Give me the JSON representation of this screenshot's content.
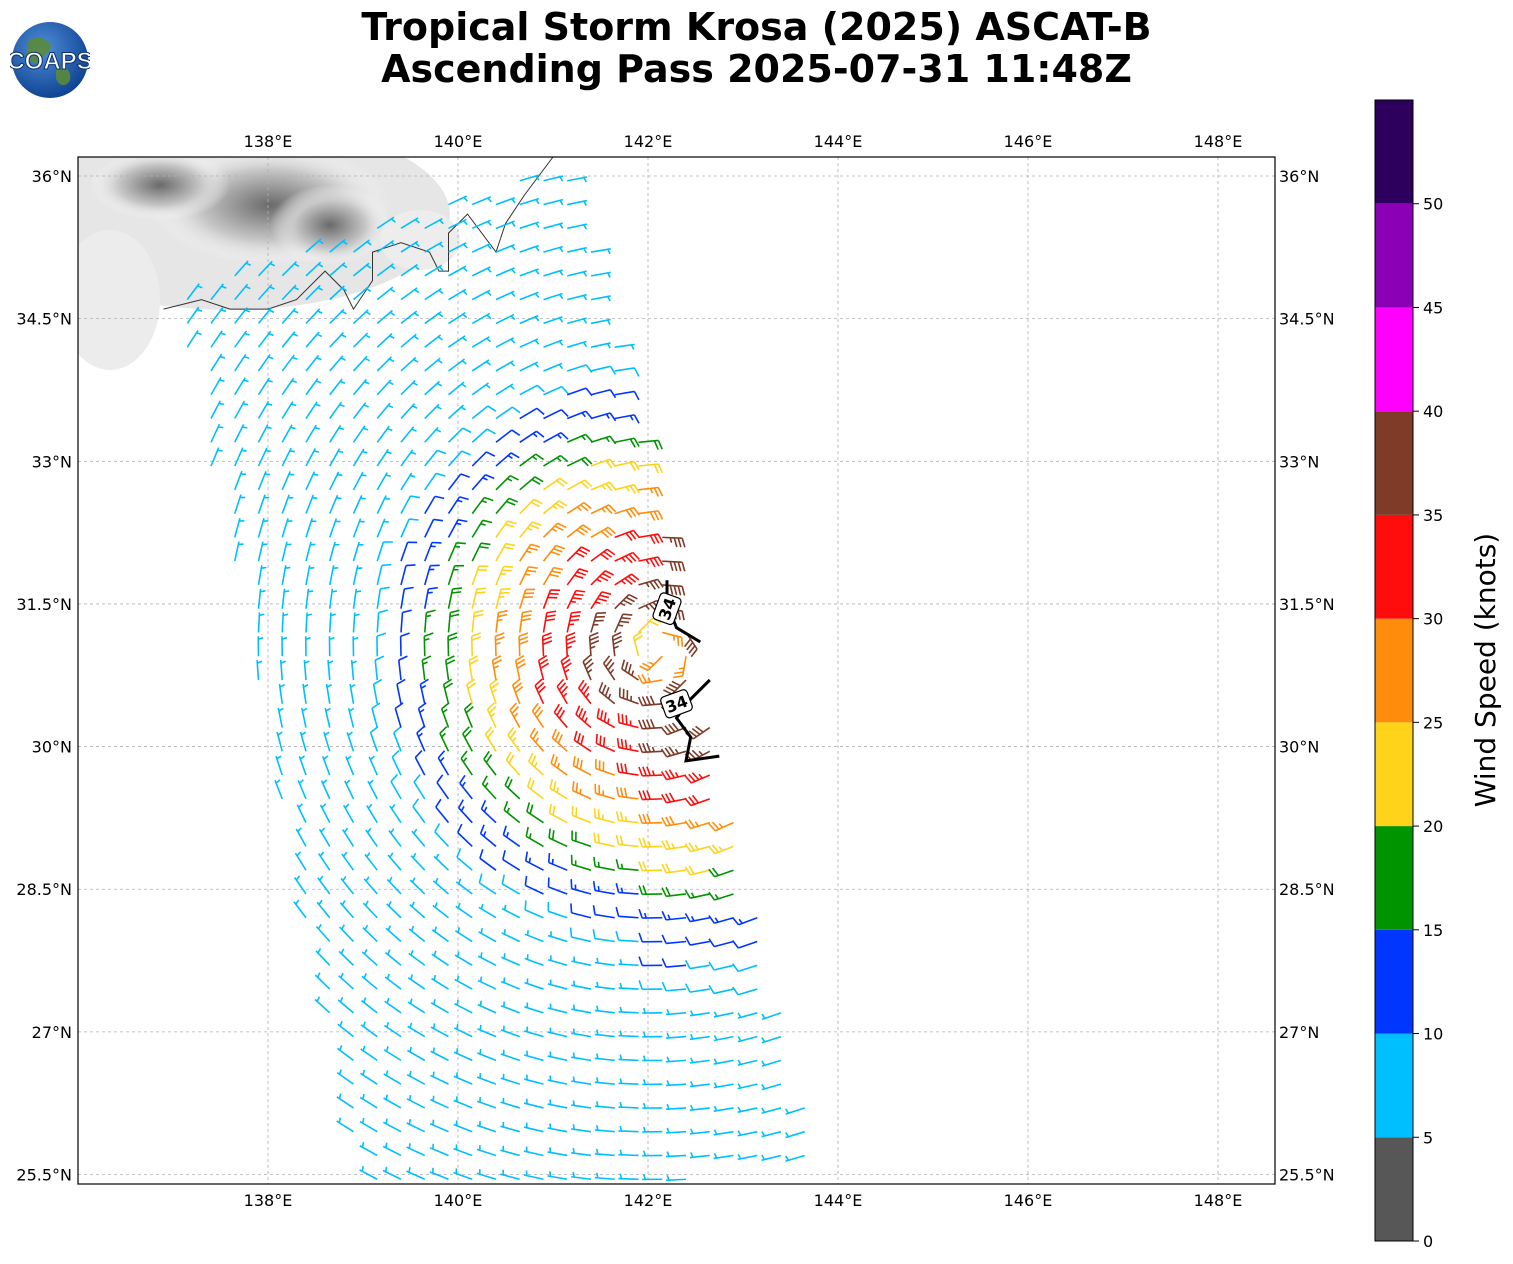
{
  "title": {
    "line1": "Tropical Storm Krosa (2025) ASCAT-B",
    "line2": "Ascending Pass 2025-07-31 11:48Z"
  },
  "logo": {
    "text": "COAPS"
  },
  "map": {
    "lon_range": [
      136,
      148.6
    ],
    "lat_range": [
      25.4,
      36.2
    ],
    "lon_ticks": [
      {
        "value": 138,
        "label": "138°E"
      },
      {
        "value": 140,
        "label": "140°E"
      },
      {
        "value": 142,
        "label": "142°E"
      },
      {
        "value": 144,
        "label": "144°E"
      },
      {
        "value": 146,
        "label": "146°E"
      },
      {
        "value": 148,
        "label": "148°E"
      }
    ],
    "lat_ticks": [
      {
        "value": 36,
        "label": "36°N"
      },
      {
        "value": 34.5,
        "label": "34.5°N"
      },
      {
        "value": 33,
        "label": "33°N"
      },
      {
        "value": 31.5,
        "label": "31.5°N"
      },
      {
        "value": 30,
        "label": "30°N"
      },
      {
        "value": 28.5,
        "label": "28.5°N"
      },
      {
        "value": 27,
        "label": "27°N"
      },
      {
        "value": 25.5,
        "label": "25.5°N"
      }
    ],
    "grid": true,
    "storm_center": {
      "lon": 142.1,
      "lat": 31.0
    },
    "contour_34kt": {
      "label": "34",
      "north_segment": [
        [
          142.2,
          31.75
        ],
        [
          142.2,
          31.5
        ],
        [
          142.3,
          31.25
        ],
        [
          142.55,
          31.1
        ]
      ],
      "south_segment": [
        [
          142.65,
          30.7
        ],
        [
          142.45,
          30.5
        ],
        [
          142.3,
          30.3
        ],
        [
          142.45,
          30.1
        ],
        [
          142.4,
          29.85
        ],
        [
          142.75,
          29.9
        ]
      ]
    },
    "coast": [
      [
        [
          136.9,
          34.6
        ],
        [
          137.3,
          34.7
        ],
        [
          137.6,
          34.6
        ],
        [
          138.0,
          34.6
        ],
        [
          138.3,
          34.7
        ],
        [
          138.6,
          35.0
        ],
        [
          138.8,
          34.8
        ],
        [
          138.9,
          34.6
        ],
        [
          139.1,
          34.9
        ],
        [
          139.1,
          35.2
        ],
        [
          139.4,
          35.3
        ],
        [
          139.7,
          35.2
        ],
        [
          139.8,
          35.0
        ],
        [
          139.9,
          35.0
        ],
        [
          139.9,
          35.4
        ],
        [
          140.1,
          35.6
        ],
        [
          140.4,
          35.2
        ],
        [
          140.5,
          35.5
        ],
        [
          140.7,
          35.8
        ],
        [
          141.0,
          36.2
        ]
      ]
    ],
    "swath": {
      "corners": [
        [
          137.0,
          34.8
        ],
        [
          141.2,
          36.2
        ],
        [
          143.85,
          25.5
        ],
        [
          139.0,
          25.3
        ]
      ],
      "speed_model": {
        "center_lon": 142.1,
        "center_lat": 31.0,
        "peak_knots": 36,
        "decay_deg": 1.6
      }
    },
    "barb_convention": {
      "half_barb_knots": 5,
      "full_barb_knots": 10
    }
  },
  "colorbar": {
    "label": "Wind Speed (knots)",
    "range": [
      0,
      55
    ],
    "bins": [
      {
        "from": 0,
        "to": 5,
        "color": "#575757"
      },
      {
        "from": 5,
        "to": 10,
        "color": "#00bfff"
      },
      {
        "from": 10,
        "to": 15,
        "color": "#0036ff"
      },
      {
        "from": 15,
        "to": 20,
        "color": "#009400"
      },
      {
        "from": 20,
        "to": 25,
        "color": "#ffd31a"
      },
      {
        "from": 25,
        "to": 30,
        "color": "#ff8d0b"
      },
      {
        "from": 30,
        "to": 35,
        "color": "#ff0d0d"
      },
      {
        "from": 35,
        "to": 40,
        "color": "#7f3b27"
      },
      {
        "from": 40,
        "to": 45,
        "color": "#ff00ff"
      },
      {
        "from": 45,
        "to": 50,
        "color": "#8b00b6"
      },
      {
        "from": 50,
        "to": 55,
        "color": "#2c005c"
      }
    ],
    "ticks": [
      "0",
      "5",
      "10",
      "15",
      "20",
      "25",
      "30",
      "35",
      "40",
      "45",
      "50"
    ]
  }
}
